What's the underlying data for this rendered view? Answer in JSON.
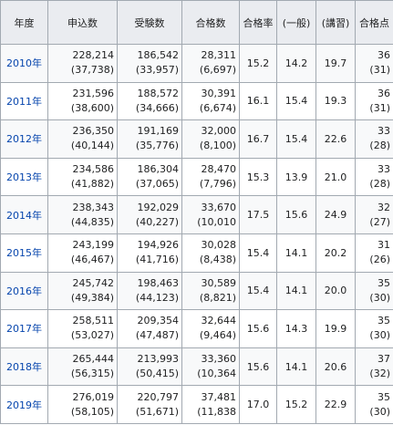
{
  "headers": [
    "年度",
    "申込数",
    "受験数",
    "合格数",
    "合格率",
    "(一般)",
    "(講習)",
    "合格点"
  ],
  "rows": [
    {
      "year": "2010年",
      "applicants": "228,214",
      "applicants_sub": "(37,738)",
      "examinees": "186,542",
      "examinees_sub": "(33,957)",
      "passed": "28,311",
      "passed_sub": "(6,697)",
      "rate": "15.2",
      "general": "14.2",
      "course": "19.7",
      "score": "36",
      "score_sub": "(31)"
    },
    {
      "year": "2011年",
      "applicants": "231,596",
      "applicants_sub": "(38,600)",
      "examinees": "188,572",
      "examinees_sub": "(34,666)",
      "passed": "30,391",
      "passed_sub": "(6,674)",
      "rate": "16.1",
      "general": "15.4",
      "course": "19.3",
      "score": "36",
      "score_sub": "(31)"
    },
    {
      "year": "2012年",
      "applicants": "236,350",
      "applicants_sub": "(40,144)",
      "examinees": "191,169",
      "examinees_sub": "(35,776)",
      "passed": "32,000",
      "passed_sub": "(8,100)",
      "rate": "16.7",
      "general": "15.4",
      "course": "22.6",
      "score": "33",
      "score_sub": "(28)"
    },
    {
      "year": "2013年",
      "applicants": "234,586",
      "applicants_sub": "(41,882)",
      "examinees": "186,304",
      "examinees_sub": "(37,065)",
      "passed": "28,470",
      "passed_sub": "(7,796)",
      "rate": "15.3",
      "general": "13.9",
      "course": "21.0",
      "score": "33",
      "score_sub": "(28)"
    },
    {
      "year": "2014年",
      "applicants": "238,343",
      "applicants_sub": "(44,835)",
      "examinees": "192,029",
      "examinees_sub": "(40,227)",
      "passed": "33,670",
      "passed_sub": "(10,010",
      "rate": "17.5",
      "general": "15.6",
      "course": "24.9",
      "score": "32",
      "score_sub": "(27)"
    },
    {
      "year": "2015年",
      "applicants": "243,199",
      "applicants_sub": "(46,467)",
      "examinees": "194,926",
      "examinees_sub": "(41,716)",
      "passed": "30,028",
      "passed_sub": "(8,438)",
      "rate": "15.4",
      "general": "14.1",
      "course": "20.2",
      "score": "31",
      "score_sub": "(26)"
    },
    {
      "year": "2016年",
      "applicants": "245,742",
      "applicants_sub": "(49,384)",
      "examinees": "198,463",
      "examinees_sub": "(44,123)",
      "passed": "30,589",
      "passed_sub": "(8,821)",
      "rate": "15.4",
      "general": "14.1",
      "course": "20.0",
      "score": "35",
      "score_sub": "(30)"
    },
    {
      "year": "2017年",
      "applicants": "258,511",
      "applicants_sub": "(53,027)",
      "examinees": "209,354",
      "examinees_sub": "(47,487)",
      "passed": "32,644",
      "passed_sub": "(9,464)",
      "rate": "15.6",
      "general": "14.3",
      "course": "19.9",
      "score": "35",
      "score_sub": "(30)"
    },
    {
      "year": "2018年",
      "applicants": "265,444",
      "applicants_sub": "(56,315)",
      "examinees": "213,993",
      "examinees_sub": "(50,415)",
      "passed": "33,360",
      "passed_sub": "(10,364",
      "rate": "15.6",
      "general": "14.1",
      "course": "20.6",
      "score": "37",
      "score_sub": "(32)"
    },
    {
      "year": "2019年",
      "applicants": "276,019",
      "applicants_sub": "(58,105)",
      "examinees": "220,797",
      "examinees_sub": "(51,671)",
      "passed": "37,481",
      "passed_sub": "(11,838",
      "rate": "17.0",
      "general": "15.2",
      "course": "22.9",
      "score": "35",
      "score_sub": "(30)"
    }
  ],
  "colors": {
    "header_bg": "#eaecf0",
    "border": "#a2a9b1",
    "link": "#0645ad",
    "alt_row": "#f8f9fa"
  }
}
